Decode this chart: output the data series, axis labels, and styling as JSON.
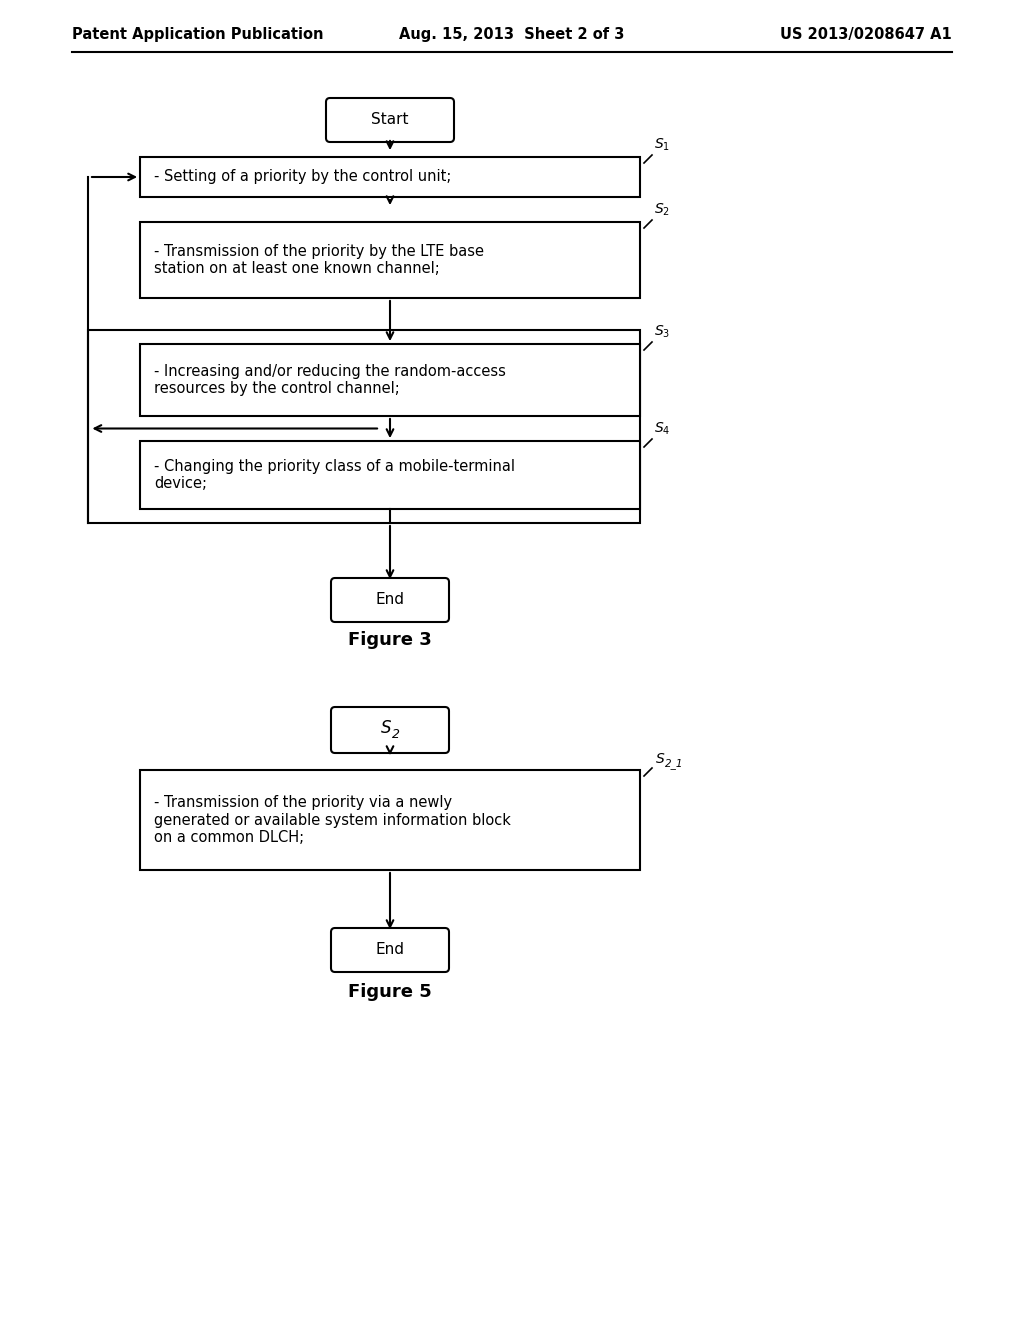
{
  "background_color": "#ffffff",
  "header": {
    "left": "Patent Application Publication",
    "center": "Aug. 15, 2013  Sheet 2 of 3",
    "right": "US 2013/0208647 A1",
    "fontsize": 10.5
  },
  "fig3": {
    "title": "Figure 3",
    "title_fontsize": 13,
    "start_label": "Start",
    "end_label": "End",
    "s1_text": "- Setting of a priority by the control unit;",
    "s2_text": "- Transmission of the priority by the LTE base\nstation on at least one known channel;",
    "s3_text": "- Increasing and/or reducing the random-access\nresources by the control channel;",
    "s4_text": "- Changing the priority class of a mobile-terminal\ndevice;"
  },
  "fig5": {
    "title": "Figure 5",
    "title_fontsize": 13,
    "start_label": "S",
    "end_label": "End",
    "s21_text": "- Transmission of the priority via a newly\ngenerated or available system information block\non a common DLCH;"
  }
}
